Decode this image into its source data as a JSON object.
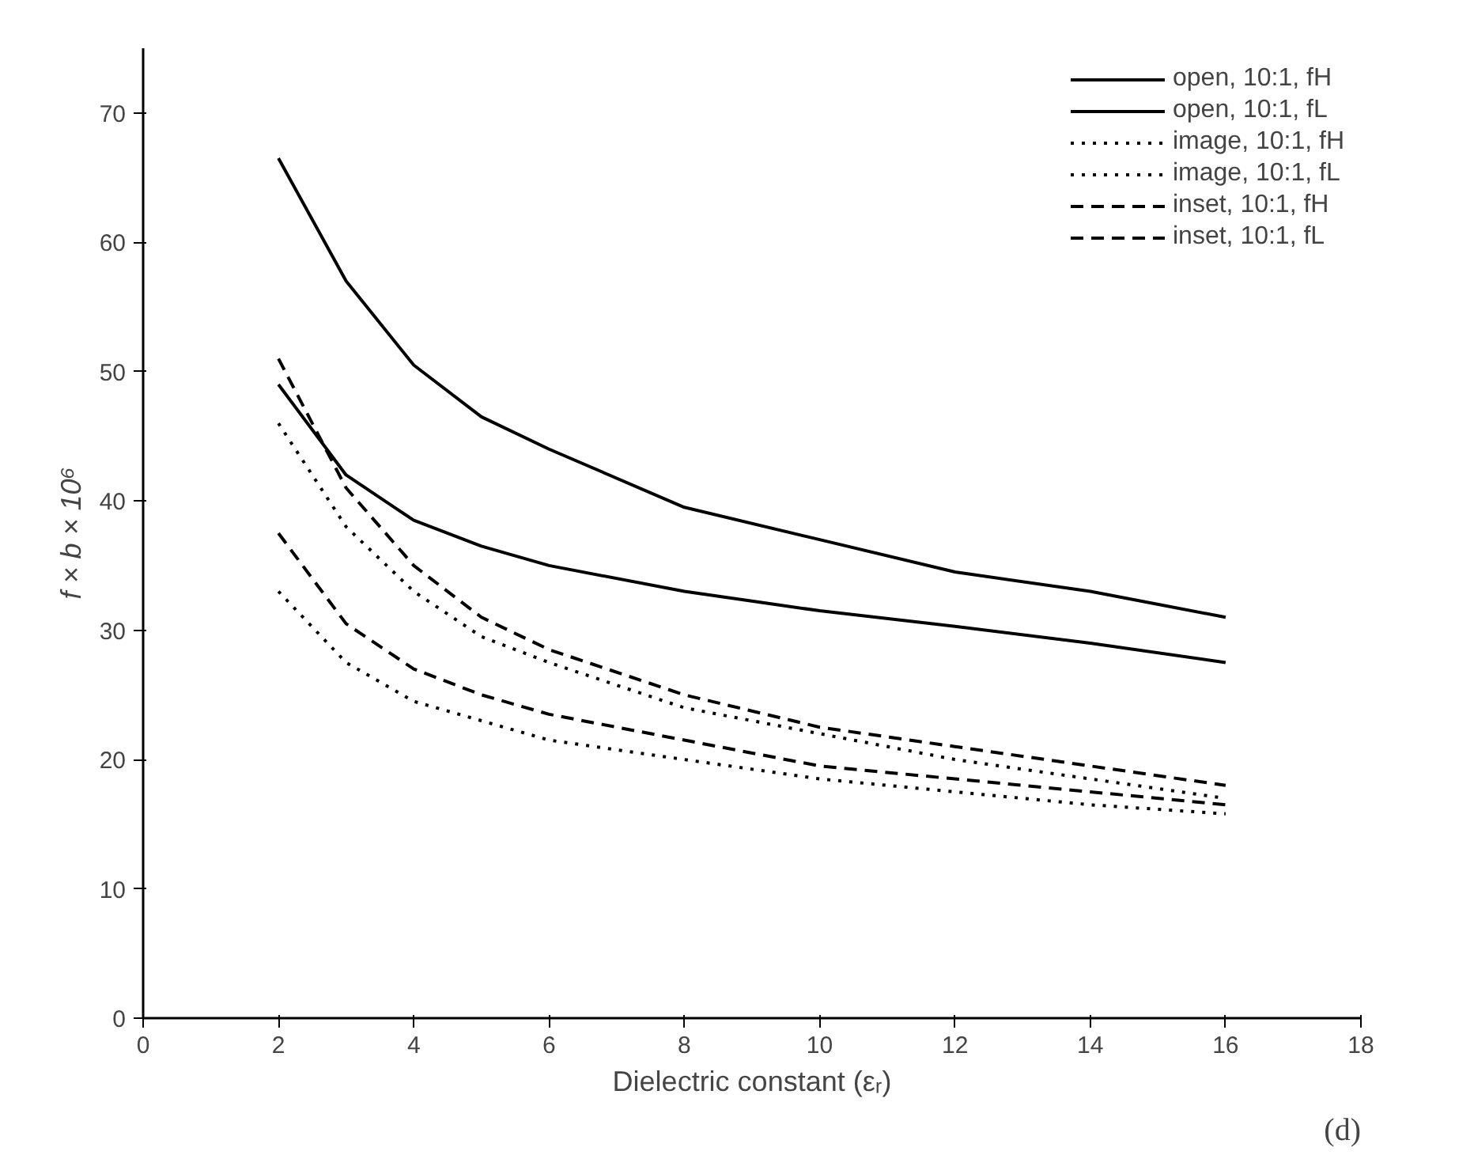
{
  "chart_data": {
    "type": "line",
    "xlabel": "Dielectric constant (εᵣ)",
    "ylabel": "f × b × 10⁶",
    "annotations": [
      "(d)"
    ],
    "x": [
      2,
      3,
      4,
      5,
      6,
      8,
      10,
      12,
      14,
      16
    ],
    "xlim": [
      0,
      18
    ],
    "xticks": [
      0,
      2,
      4,
      6,
      8,
      10,
      12,
      14,
      16,
      18
    ],
    "ylim": [
      0,
      75
    ],
    "yticks": [
      0,
      10,
      20,
      30,
      40,
      50,
      60,
      70
    ],
    "grid": false,
    "legend": "top right",
    "marker": "none",
    "series": [
      {
        "name": "open, 10:1, fH",
        "color": "#000000",
        "line_style": "solid",
        "values": [
          66.5,
          57,
          50.5,
          46.5,
          44,
          39.5,
          37,
          34.5,
          33,
          31
        ]
      },
      {
        "name": "open, 10:1, fL",
        "color": "#000000",
        "line_style": "solid",
        "values": [
          49,
          42,
          38.5,
          36.5,
          35,
          33,
          31.5,
          30.3,
          29,
          27.5
        ]
      },
      {
        "name": "image, 10:1, fH",
        "color": "#000000",
        "line_style": "dotted",
        "values": [
          46,
          38,
          33,
          29.5,
          27.5,
          24,
          22,
          20,
          18.5,
          17
        ]
      },
      {
        "name": "image, 10:1, fL",
        "color": "#000000",
        "line_style": "dotted",
        "values": [
          33,
          27.5,
          24.5,
          23,
          21.5,
          20,
          18.5,
          17.5,
          16.5,
          15.8
        ]
      },
      {
        "name": "inset, 10:1, fH",
        "color": "#000000",
        "line_style": "dashed",
        "values": [
          51,
          41,
          35,
          31,
          28.5,
          25,
          22.5,
          21,
          19.5,
          18
        ]
      },
      {
        "name": "inset, 10:1, fL",
        "color": "#000000",
        "line_style": "dashed",
        "values": [
          37.5,
          30.5,
          27,
          25,
          23.5,
          21.5,
          19.5,
          18.5,
          17.5,
          16.5
        ]
      }
    ]
  }
}
